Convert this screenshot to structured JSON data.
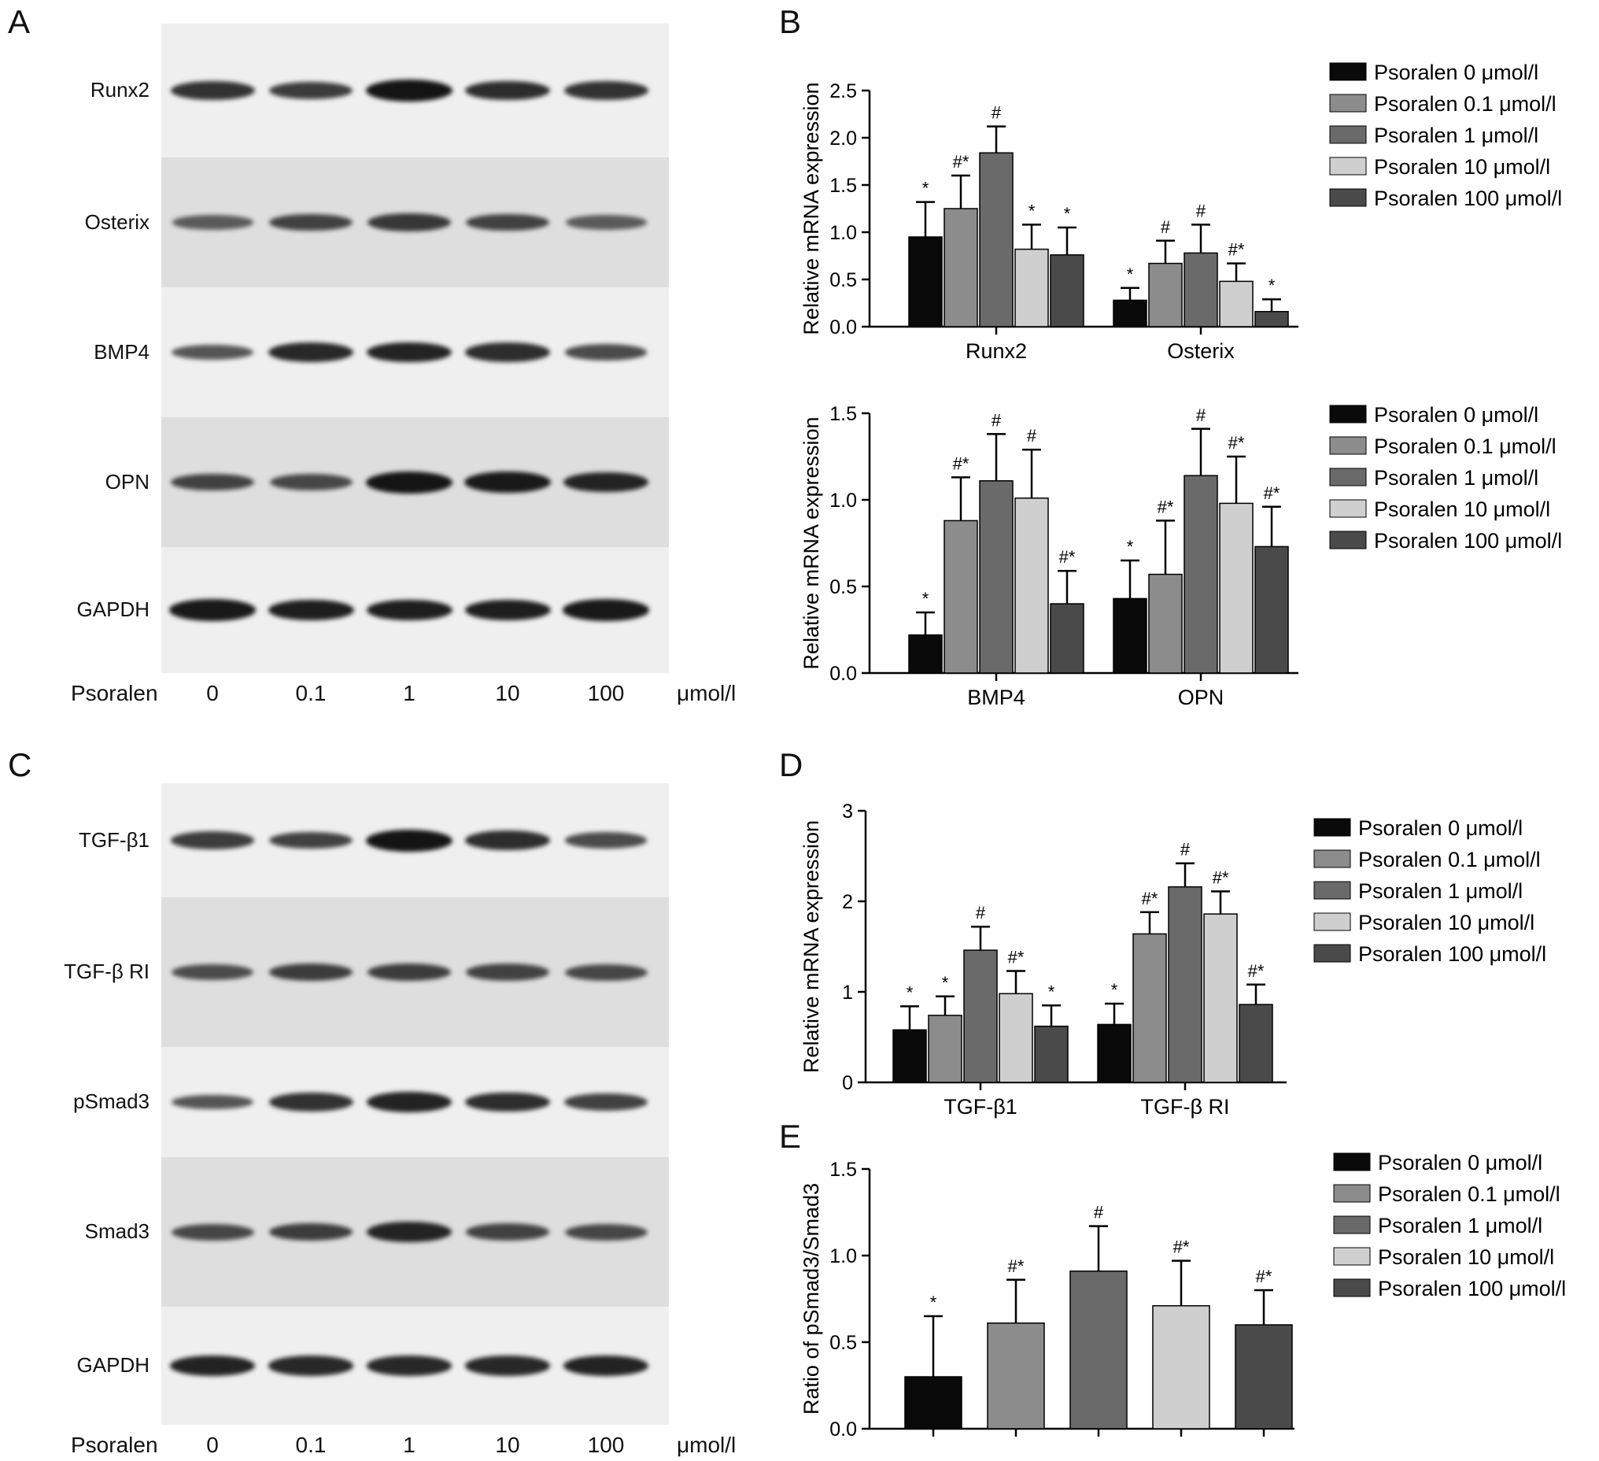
{
  "panel_labels": {
    "a": "A",
    "b": "B",
    "c": "C",
    "d": "D",
    "e": "E"
  },
  "blot_a": {
    "rows": [
      "Runx2",
      "Osterix",
      "BMP4",
      "OPN",
      "GAPDH"
    ],
    "treatment_label": "Psoralen",
    "concentrations": [
      "0",
      "0.1",
      "1",
      "10",
      "100"
    ],
    "unit": "μmol/l"
  },
  "blot_c": {
    "rows": [
      "TGF-β1",
      "TGF-β RI",
      "pSmad3",
      "Smad3",
      "GAPDH"
    ],
    "treatment_label": "Psoralen",
    "concentrations": [
      "0",
      "0.1",
      "1",
      "10",
      "100"
    ],
    "unit": "μmol/l"
  },
  "legend_entries": [
    "Psoralen 0 μmol/l",
    "Psoralen 0.1 μmol/l",
    "Psoralen 1 μmol/l",
    "Psoralen 10 μmol/l",
    "Psoralen 100 μmol/l"
  ],
  "series_colors": [
    "#0a0a0a",
    "#8c8c8c",
    "#6a6a6a",
    "#cfcfcf",
    "#4a4a4a"
  ],
  "chart_data": [
    {
      "id": "B1",
      "type": "bar",
      "ylabel": "Relative mRNA expression",
      "ylim": [
        0,
        2.5
      ],
      "yticks": [
        "0.0",
        "0.5",
        "1.0",
        "1.5",
        "2.0",
        "2.5"
      ],
      "categories": [
        "Runx2",
        "Osterix"
      ],
      "series": [
        {
          "name": "Psoralen 0 μmol/l",
          "values": [
            0.95,
            0.28
          ],
          "errors": [
            0.37,
            0.13
          ],
          "marks": [
            "*",
            "*"
          ]
        },
        {
          "name": "Psoralen 0.1 μmol/l",
          "values": [
            1.25,
            0.67
          ],
          "errors": [
            0.35,
            0.24
          ],
          "marks": [
            "#*",
            "#"
          ]
        },
        {
          "name": "Psoralen 1 μmol/l",
          "values": [
            1.84,
            0.78
          ],
          "errors": [
            0.28,
            0.3
          ],
          "marks": [
            "#",
            "#"
          ]
        },
        {
          "name": "Psoralen 10 μmol/l",
          "values": [
            0.82,
            0.48
          ],
          "errors": [
            0.26,
            0.19
          ],
          "marks": [
            "*",
            "#*"
          ]
        },
        {
          "name": "Psoralen 100 μmol/l",
          "values": [
            0.76,
            0.16
          ],
          "errors": [
            0.29,
            0.13
          ],
          "marks": [
            "*",
            "*"
          ]
        }
      ]
    },
    {
      "id": "B2",
      "type": "bar",
      "ylabel": "Relative mRNA expression",
      "ylim": [
        0,
        1.5
      ],
      "yticks": [
        "0.0",
        "0.5",
        "1.0",
        "1.5"
      ],
      "categories": [
        "BMP4",
        "OPN"
      ],
      "series": [
        {
          "name": "Psoralen 0 μmol/l",
          "values": [
            0.22,
            0.43
          ],
          "errors": [
            0.13,
            0.22
          ],
          "marks": [
            "*",
            "*"
          ]
        },
        {
          "name": "Psoralen 0.1 μmol/l",
          "values": [
            0.88,
            0.57
          ],
          "errors": [
            0.25,
            0.31
          ],
          "marks": [
            "#*",
            "#*"
          ]
        },
        {
          "name": "Psoralen 1 μmol/l",
          "values": [
            1.11,
            1.14
          ],
          "errors": [
            0.27,
            0.27
          ],
          "marks": [
            "#",
            "#"
          ]
        },
        {
          "name": "Psoralen 10 μmol/l",
          "values": [
            1.01,
            0.98
          ],
          "errors": [
            0.28,
            0.27
          ],
          "marks": [
            "#",
            "#*"
          ]
        },
        {
          "name": "Psoralen 100 μmol/l",
          "values": [
            0.4,
            0.73
          ],
          "errors": [
            0.19,
            0.23
          ],
          "marks": [
            "#*",
            "#*"
          ]
        }
      ]
    },
    {
      "id": "D",
      "type": "bar",
      "ylabel": "Relative mRNA expression",
      "ylim": [
        0,
        3
      ],
      "yticks": [
        "0",
        "1",
        "2",
        "3"
      ],
      "categories": [
        "TGF-β1",
        "TGF-β RI"
      ],
      "series": [
        {
          "name": "Psoralen 0 μmol/l",
          "values": [
            0.58,
            0.64
          ],
          "errors": [
            0.26,
            0.23
          ],
          "marks": [
            "*",
            "*"
          ]
        },
        {
          "name": "Psoralen 0.1 μmol/l",
          "values": [
            0.74,
            1.64
          ],
          "errors": [
            0.21,
            0.24
          ],
          "marks": [
            "*",
            "#*"
          ]
        },
        {
          "name": "Psoralen 1 μmol/l",
          "values": [
            1.46,
            2.16
          ],
          "errors": [
            0.26,
            0.26
          ],
          "marks": [
            "#",
            "#"
          ]
        },
        {
          "name": "Psoralen 10 μmol/l",
          "values": [
            0.98,
            1.86
          ],
          "errors": [
            0.25,
            0.25
          ],
          "marks": [
            "#*",
            "#*"
          ]
        },
        {
          "name": "Psoralen 100 μmol/l",
          "values": [
            0.62,
            0.86
          ],
          "errors": [
            0.23,
            0.22
          ],
          "marks": [
            "*",
            "#*"
          ]
        }
      ]
    },
    {
      "id": "E",
      "type": "bar",
      "ylabel": "Ratio of pSmad3/Smad3",
      "ylim": [
        0,
        1.5
      ],
      "yticks": [
        "0.0",
        "0.5",
        "1.0",
        "1.5"
      ],
      "categories": [
        ""
      ],
      "series": [
        {
          "name": "Psoralen 0 μmol/l",
          "values": [
            0.3
          ],
          "errors": [
            0.35
          ],
          "marks": [
            "*"
          ]
        },
        {
          "name": "Psoralen 0.1 μmol/l",
          "values": [
            0.61
          ],
          "errors": [
            0.25
          ],
          "marks": [
            "#*"
          ]
        },
        {
          "name": "Psoralen 1 μmol/l",
          "values": [
            0.91
          ],
          "errors": [
            0.26
          ],
          "marks": [
            "#"
          ]
        },
        {
          "name": "Psoralen 10 μmol/l",
          "values": [
            0.71
          ],
          "errors": [
            0.26
          ],
          "marks": [
            "#*"
          ]
        },
        {
          "name": "Psoralen 100 μmol/l",
          "values": [
            0.6
          ],
          "errors": [
            0.2
          ],
          "marks": [
            "#*"
          ]
        }
      ]
    }
  ]
}
